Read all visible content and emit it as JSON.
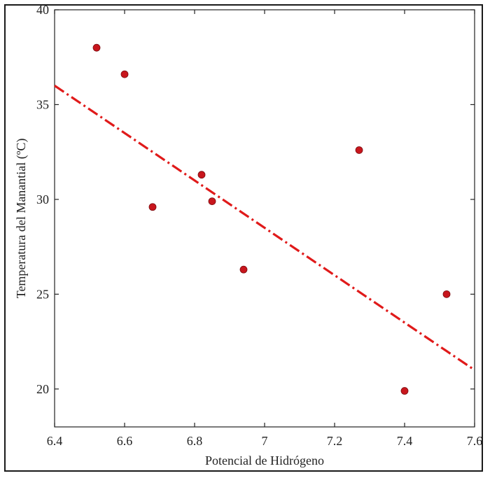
{
  "chart_data": {
    "type": "scatter",
    "title": "",
    "xlabel": "Potencial de Hidrógeno",
    "ylabel": "Temperatura del Manantial (ºC)",
    "xlim": [
      6.4,
      7.6
    ],
    "ylim": [
      18,
      40
    ],
    "x_ticks": [
      6.4,
      6.6,
      6.8,
      7.0,
      7.2,
      7.4,
      7.6
    ],
    "x_tick_labels": [
      "6.4",
      "6.6",
      "6.8",
      "7",
      "7.2",
      "7.4",
      "7.6"
    ],
    "y_ticks": [
      20,
      25,
      30,
      35,
      40
    ],
    "y_tick_labels": [
      "20",
      "25",
      "30",
      "35",
      "40"
    ],
    "grid": false,
    "point_color": "#c8161d",
    "points": [
      {
        "x": 6.52,
        "y": 38.0
      },
      {
        "x": 6.6,
        "y": 36.6
      },
      {
        "x": 6.68,
        "y": 29.6
      },
      {
        "x": 6.82,
        "y": 31.3
      },
      {
        "x": 6.85,
        "y": 29.9
      },
      {
        "x": 6.94,
        "y": 26.3
      },
      {
        "x": 7.27,
        "y": 32.6
      },
      {
        "x": 7.4,
        "y": 19.9
      },
      {
        "x": 7.52,
        "y": 25.0
      }
    ],
    "trend_line": {
      "style": "dash-dot",
      "color": "#e01a1a",
      "x": [
        6.4,
        7.6
      ],
      "y": [
        36.0,
        21.0
      ]
    }
  }
}
